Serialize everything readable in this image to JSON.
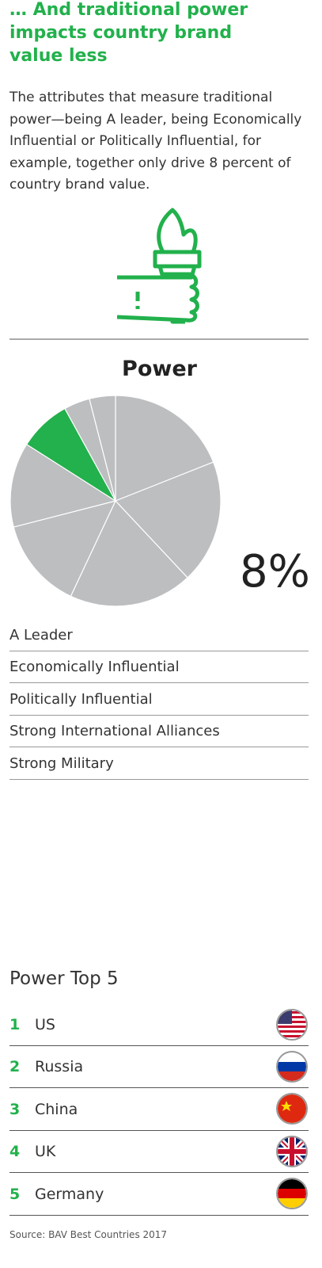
{
  "header": {
    "title": "… And traditional power impacts country brand value less"
  },
  "intro": "The attributes that measure traditional power—being A leader, being Economically Influential or Politically Influential, for example, together only drive 8 percent of country brand value.",
  "chart_data": {
    "type": "pie",
    "title": "Power",
    "values": [
      19,
      19,
      19,
      14,
      13,
      8,
      4,
      4
    ],
    "value_labels": [
      null,
      null,
      null,
      null,
      null,
      "8%",
      null,
      null
    ],
    "colors": [
      "#bcbec0",
      "#bcbec0",
      "#bcbec0",
      "#bcbec0",
      "#bcbec0",
      "#22b14c",
      "#bcbec0",
      "#bcbec0"
    ]
  },
  "attributes": [
    "A Leader",
    "Economically Influential",
    "Politically Influential",
    "Strong International Alliances",
    "Strong Military"
  ],
  "top5": {
    "title": "Power Top 5",
    "rows": [
      {
        "rank": "1",
        "country": "US"
      },
      {
        "rank": "2",
        "country": "Russia"
      },
      {
        "rank": "3",
        "country": "China"
      },
      {
        "rank": "4",
        "country": "UK"
      },
      {
        "rank": "5",
        "country": "Germany"
      }
    ]
  },
  "source": "Source: BAV Best Countries 2017"
}
